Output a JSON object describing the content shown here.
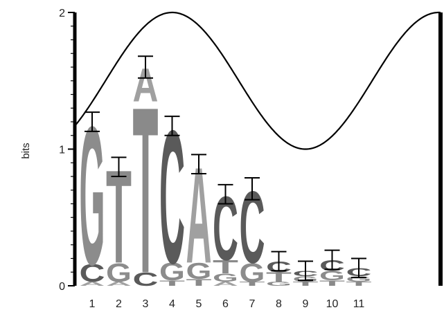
{
  "chart_data": {
    "type": "sequence-logo",
    "title": "",
    "ylabel": "bits",
    "xlabel": "",
    "ylim": [
      0,
      2
    ],
    "y_ticks": [
      "0",
      "1",
      "2"
    ],
    "positions": [
      "1",
      "2",
      "3",
      "4",
      "5",
      "6",
      "7",
      "8",
      "9",
      "10",
      "11"
    ],
    "stacks": [
      {
        "letters": [
          {
            "l": "A",
            "h": 0.03
          },
          {
            "l": "C",
            "h": 0.13
          },
          {
            "l": "G",
            "h": 1.04
          }
        ],
        "total": 1.2,
        "err": 0.07
      },
      {
        "letters": [
          {
            "l": "A",
            "h": 0.03
          },
          {
            "l": "G",
            "h": 0.14
          },
          {
            "l": "T",
            "h": 0.7
          }
        ],
        "total": 0.87,
        "err": 0.07
      },
      {
        "letters": [
          {
            "l": "C",
            "h": 0.1
          },
          {
            "l": "T",
            "h": 1.25
          },
          {
            "l": "A",
            "h": 0.25
          }
        ],
        "total": 1.6,
        "err": 0.08
      },
      {
        "letters": [
          {
            "l": "T",
            "h": 0.04
          },
          {
            "l": "G",
            "h": 0.13
          },
          {
            "l": "C",
            "h": 1.0
          }
        ],
        "total": 1.17,
        "err": 0.07
      },
      {
        "letters": [
          {
            "l": "T",
            "h": 0.05
          },
          {
            "l": "G",
            "h": 0.12
          },
          {
            "l": "A",
            "h": 0.72
          }
        ],
        "total": 0.89,
        "err": 0.07
      },
      {
        "letters": [
          {
            "l": "A",
            "h": 0.03
          },
          {
            "l": "G",
            "h": 0.06
          },
          {
            "l": "T",
            "h": 0.1
          },
          {
            "l": "C",
            "h": 0.48
          }
        ],
        "total": 0.67,
        "err": 0.07
      },
      {
        "letters": [
          {
            "l": "T",
            "h": 0.03
          },
          {
            "l": "G",
            "h": 0.14
          },
          {
            "l": "C",
            "h": 0.54
          }
        ],
        "total": 0.71,
        "err": 0.08
      },
      {
        "letters": [
          {
            "l": "G",
            "h": 0.03
          },
          {
            "l": "T",
            "h": 0.07
          },
          {
            "l": "C",
            "h": 0.08
          }
        ],
        "total": 0.18,
        "err": 0.07
      },
      {
        "letters": [
          {
            "l": "T",
            "h": 0.03
          },
          {
            "l": "G",
            "h": 0.04
          },
          {
            "l": "C",
            "h": 0.04
          }
        ],
        "total": 0.11,
        "err": 0.07
      },
      {
        "letters": [
          {
            "l": "T",
            "h": 0.04
          },
          {
            "l": "G",
            "h": 0.07
          },
          {
            "l": "C",
            "h": 0.08
          }
        ],
        "total": 0.19,
        "err": 0.07
      },
      {
        "letters": [
          {
            "l": "T",
            "h": 0.03
          },
          {
            "l": "G",
            "h": 0.04
          },
          {
            "l": "C",
            "h": 0.06
          }
        ],
        "total": 0.13,
        "err": 0.07
      }
    ],
    "curve": {
      "y_at_left": 1.27,
      "peak_y": 2.0,
      "peak_at_position": 4,
      "trough_y": 1.0,
      "trough_at_position": 9,
      "y_at_right": 1.38
    },
    "colors": {
      "A": "#a0a0a0",
      "C": "#5a5a5a",
      "G": "#8c8c8c",
      "T": "#8a8a8a",
      "axis": "#000000",
      "curve": "#000000"
    }
  }
}
